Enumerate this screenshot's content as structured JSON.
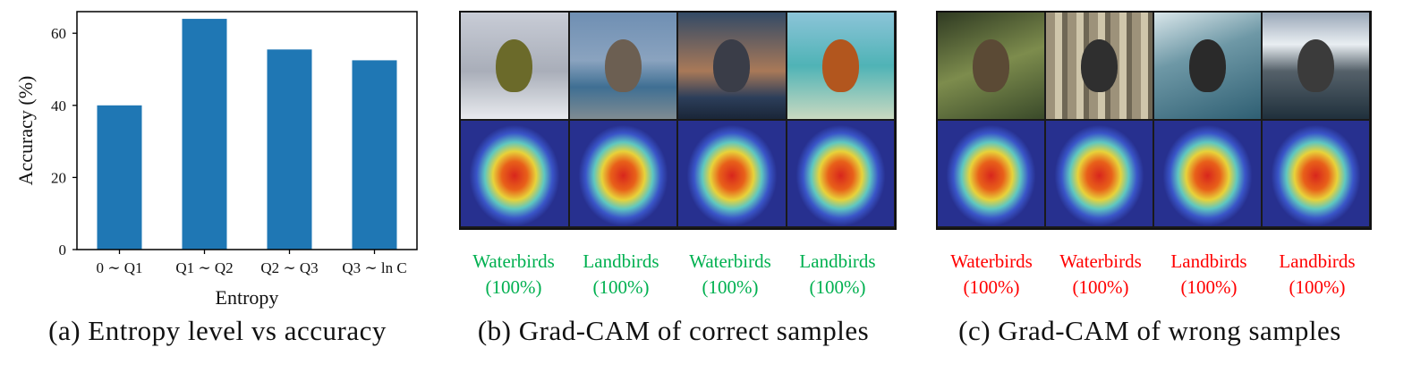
{
  "chart_a": {
    "chart_data": {
      "type": "bar",
      "categories": [
        "0 ∼ Q1",
        "Q1 ∼ Q2",
        "Q2 ∼ Q3",
        "Q3 ∼ ln C"
      ],
      "values": [
        40,
        64,
        55.5,
        52.5
      ],
      "xlabel": "Entropy",
      "ylabel": "Accuracy (%)",
      "ylim": [
        0,
        66
      ],
      "yticks": [
        0,
        20,
        40,
        60
      ],
      "bar_color": "#1f77b4",
      "grid": false,
      "legend": "none"
    },
    "caption": "(a) Entropy level vs accuracy"
  },
  "panel_b": {
    "caption": "(b) Grad-CAM of correct samples",
    "label_color": "#00b050",
    "samples": [
      {
        "label": "Waterbirds",
        "confidence": "(100%)",
        "scene": "snowy-tree-bird"
      },
      {
        "label": "Landbirds",
        "confidence": "(100%)",
        "scene": "coast-flying-bird"
      },
      {
        "label": "Waterbirds",
        "confidence": "(100%)",
        "scene": "sunset-crow"
      },
      {
        "label": "Landbirds",
        "confidence": "(100%)",
        "scene": "beach-songbird"
      }
    ]
  },
  "panel_c": {
    "caption": "(c) Grad-CAM of wrong samples",
    "label_color": "#ff0000",
    "samples": [
      {
        "label": "Waterbirds",
        "confidence": "(100%)",
        "scene": "forest-bird"
      },
      {
        "label": "Waterbirds",
        "confidence": "(100%)",
        "scene": "bamboo-bird"
      },
      {
        "label": "Landbirds",
        "confidence": "(100%)",
        "scene": "wave-bird"
      },
      {
        "label": "Landbirds",
        "confidence": "(100%)",
        "scene": "lake-mountain-bird"
      }
    ]
  }
}
